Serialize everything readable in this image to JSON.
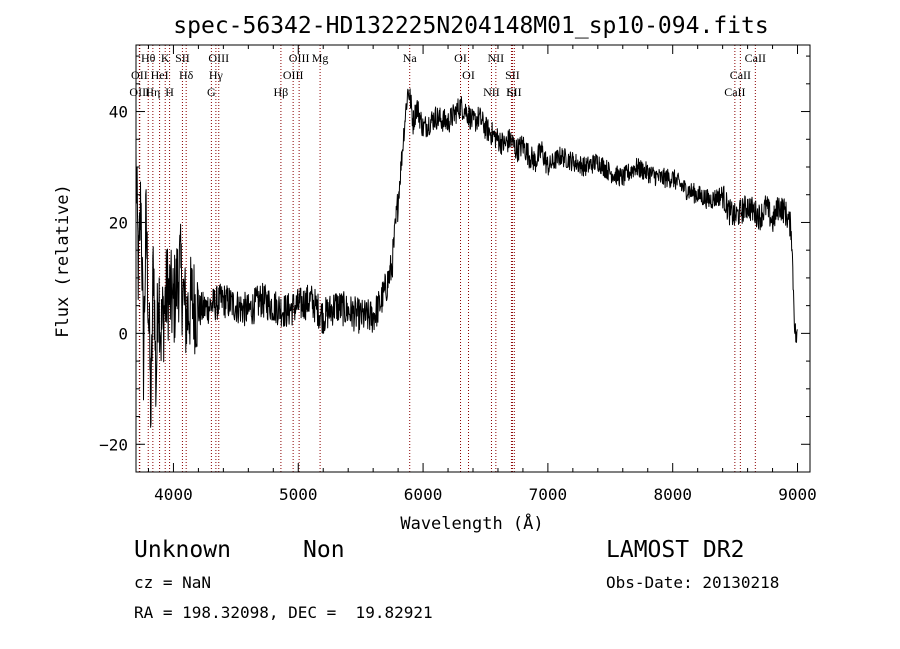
{
  "chart_data": {
    "type": "line",
    "title": "spec-56342-HD132225N204148M01_sp10-094.fits",
    "xlabel": "Wavelength (Å)",
    "ylabel": "Flux (relative)",
    "xlim": [
      3700,
      9100
    ],
    "ylim": [
      -25,
      52
    ],
    "x_ticks": [
      4000,
      5000,
      6000,
      7000,
      8000,
      9000
    ],
    "y_ticks": [
      -20,
      0,
      20,
      40
    ],
    "line_color": "#000000",
    "marker_color": "#8b0000",
    "grid": false,
    "series": [
      {
        "x": [
          3700,
          3720,
          3740,
          3760,
          3780,
          3800,
          3820,
          3840,
          3860,
          3880,
          3900,
          3950,
          4000,
          4050,
          4100,
          4150,
          4200,
          4300,
          4400,
          4500,
          4600,
          4700,
          4800,
          4900,
          5000,
          5100,
          5200,
          5300,
          5400,
          5500,
          5600,
          5650,
          5700,
          5750,
          5800,
          5830,
          5860,
          5880,
          5900,
          5920,
          5950,
          6000,
          6100,
          6200,
          6300,
          6350,
          6400,
          6450,
          6500,
          6550,
          6600,
          6650,
          6700,
          6750,
          6800,
          6850,
          6900,
          6950,
          7000,
          7100,
          7200,
          7300,
          7400,
          7500,
          7600,
          7700,
          7800,
          7900,
          8000,
          8100,
          8200,
          8300,
          8400,
          8450,
          8500,
          8550,
          8600,
          8650,
          8700,
          8750,
          8800,
          8850,
          8900,
          8950,
          8980,
          9000
        ],
        "y": [
          30,
          10,
          25,
          -5,
          20,
          5,
          -15,
          15,
          -10,
          10,
          0,
          8,
          5,
          12,
          3,
          6,
          4,
          5,
          6,
          5,
          4,
          6,
          5,
          4,
          5,
          6,
          3,
          5,
          4,
          3,
          3,
          5,
          8,
          12,
          24,
          32,
          40,
          44,
          42,
          38,
          41,
          37,
          39,
          38,
          41,
          40,
          38,
          39,
          37,
          36,
          35,
          34,
          35,
          33,
          34,
          32,
          31,
          33,
          30,
          32,
          31,
          30,
          31,
          29,
          28,
          30,
          29,
          28,
          28,
          26,
          25,
          24,
          25,
          22,
          21,
          22,
          23,
          22,
          21,
          23,
          20,
          23,
          22,
          19,
          0,
          -1
        ]
      }
    ],
    "line_markers": [
      {
        "label": "Hθ",
        "x": 3798
      },
      {
        "label": "OII",
        "x": 3727
      },
      {
        "label": "OIII",
        "x": 3730
      },
      {
        "label": "K",
        "x": 3934
      },
      {
        "label": "HeI",
        "x": 3889
      },
      {
        "label": "Hη",
        "x": 3835
      },
      {
        "label": "SII",
        "x": 4072
      },
      {
        "label": "H",
        "x": 3969
      },
      {
        "label": "Hδ",
        "x": 4102
      },
      {
        "label": "OIII",
        "x": 4363
      },
      {
        "label": "Hγ",
        "x": 4340
      },
      {
        "label": "G",
        "x": 4304
      },
      {
        "label": "OIII",
        "x": 5007
      },
      {
        "label": "OIII",
        "x": 4959
      },
      {
        "label": "Hβ",
        "x": 4861
      },
      {
        "label": "Mg",
        "x": 5175
      },
      {
        "label": "Na",
        "x": 5893
      },
      {
        "label": "OI",
        "x": 6300
      },
      {
        "label": "OI",
        "x": 6364
      },
      {
        "label": "NII",
        "x": 6583
      },
      {
        "label": "SII",
        "x": 6716
      },
      {
        "label": "NII",
        "x": 6548
      },
      {
        "label": "SII",
        "x": 6731
      },
      {
        "label": "Li",
        "x": 6708
      },
      {
        "label": "CaII",
        "x": 8662
      },
      {
        "label": "CaII",
        "x": 8542
      },
      {
        "label": "CaII",
        "x": 8498
      }
    ]
  },
  "info": {
    "object_class": "Unknown",
    "object_subclass": "Non",
    "survey": "LAMOST DR2",
    "cz": "cz = NaN",
    "obs_date": "Obs-Date: 20130218",
    "coords": "RA = 198.32098, DEC =  19.82921"
  }
}
